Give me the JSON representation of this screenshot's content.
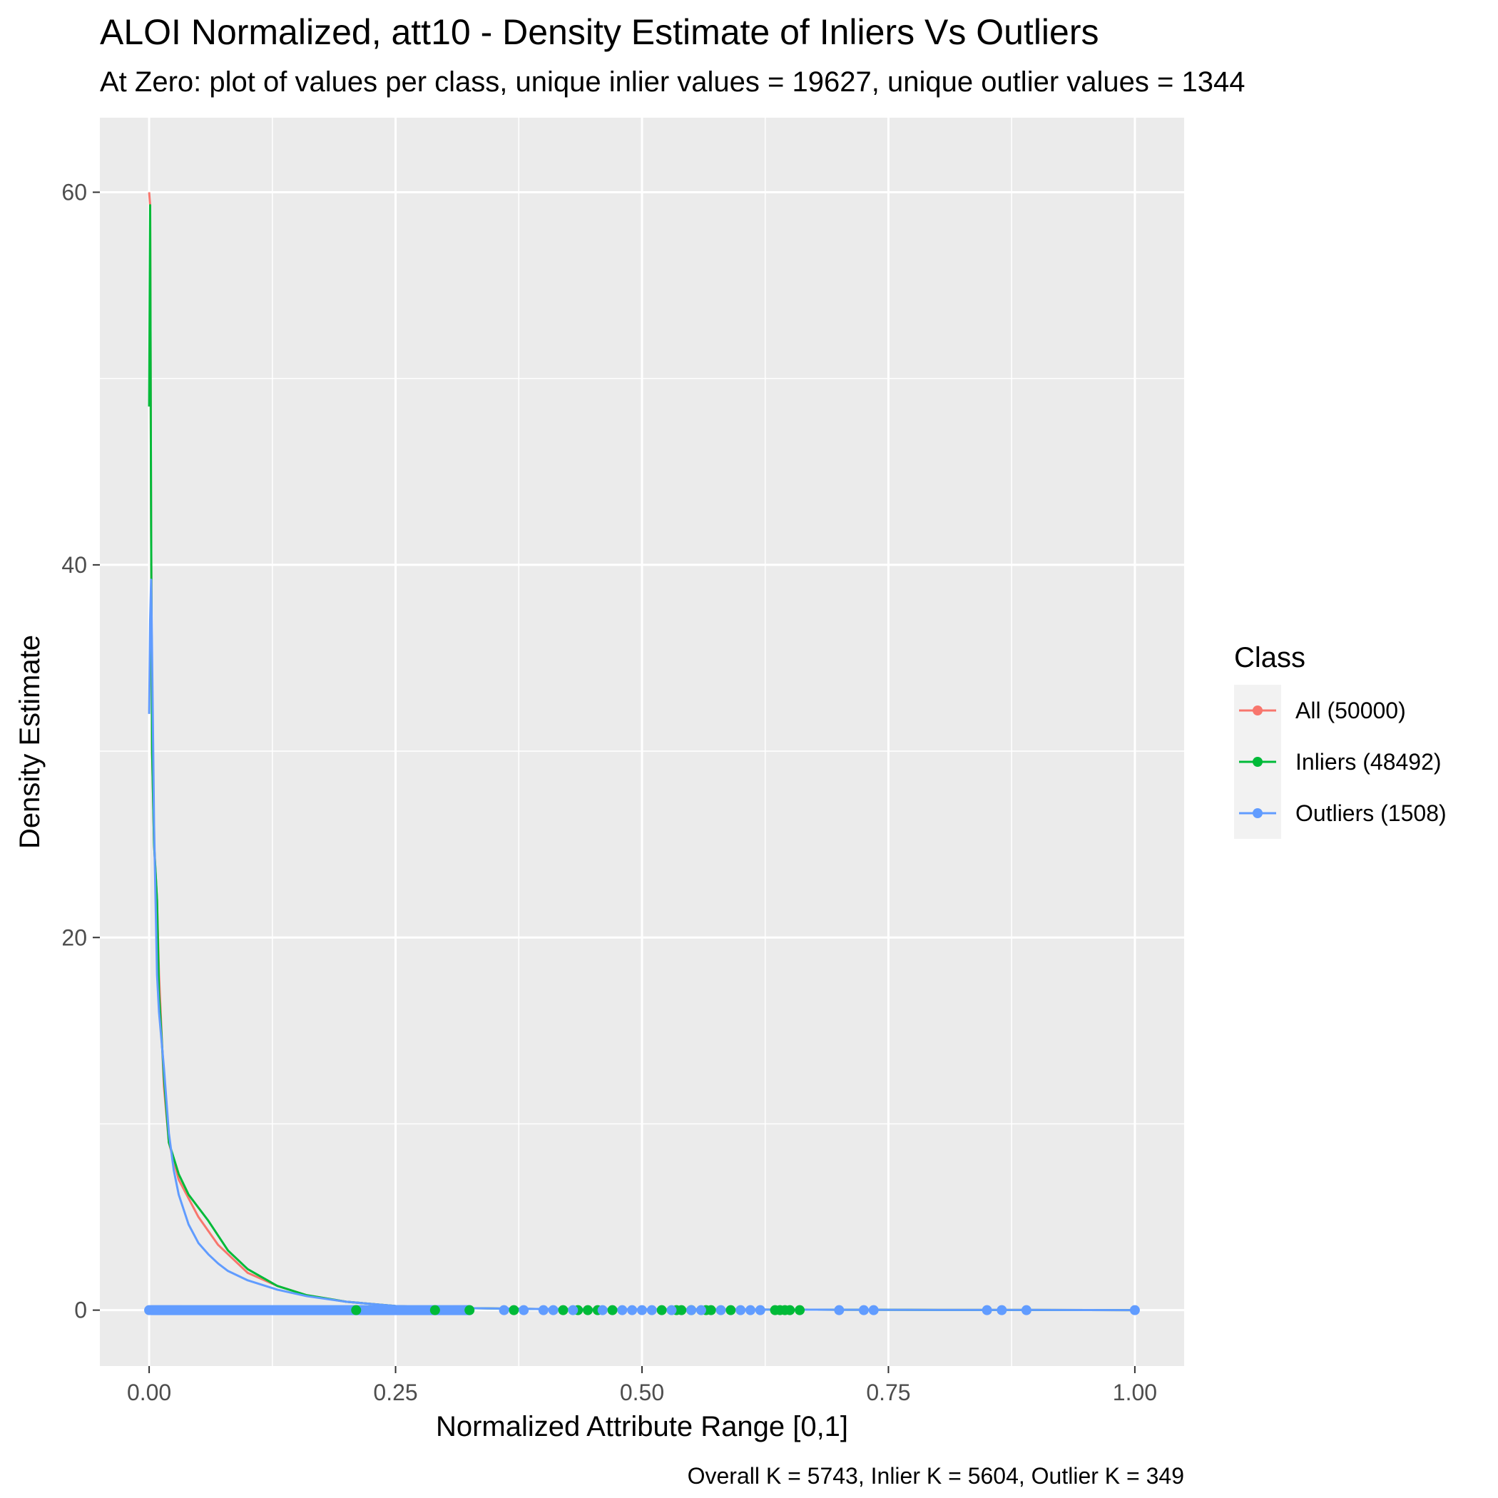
{
  "chart_data": {
    "type": "line",
    "title": "ALOI Normalized, att10 - Density Estimate of Inliers Vs Outliers",
    "subtitle": "At Zero: plot of values per class, unique inlier values = 19627, unique outlier values = 1344",
    "xlabel": "Normalized Attribute Range [0,1]",
    "ylabel": "Density Estimate",
    "caption": "Overall K = 5743, Inlier K = 5604, Outlier K = 349",
    "xlim": [
      -0.05,
      1.05
    ],
    "ylim": [
      -3,
      64
    ],
    "x_ticks": [
      0,
      0.25,
      0.5,
      0.75,
      1.0
    ],
    "x_tick_labels": [
      "0.00",
      "0.25",
      "0.50",
      "0.75",
      "1.00"
    ],
    "y_ticks": [
      0,
      20,
      40,
      60
    ],
    "y_tick_labels": [
      "0",
      "20",
      "40",
      "60"
    ],
    "grid": true,
    "legend": {
      "title": "Class",
      "position": "right"
    },
    "colors": {
      "panel_background": "#ebebeb",
      "grid": "#ffffff",
      "all": "#f8766d",
      "inliers": "#00ba38",
      "outliers": "#619cff"
    },
    "series": [
      {
        "name": "All (50000)",
        "color": "#f8766d",
        "x": [
          0,
          0.001,
          0.002,
          0.003,
          0.005,
          0.008,
          0.01,
          0.015,
          0.02,
          0.03,
          0.05,
          0.07,
          0.1,
          0.13,
          0.16,
          0.2,
          0.25,
          0.3,
          0.4,
          0.5,
          0.6,
          0.7,
          0.8,
          0.9,
          1.0
        ],
        "values": [
          60,
          59.3,
          42,
          30,
          25,
          22,
          18,
          12,
          9,
          7,
          5,
          3.5,
          2,
          1.3,
          0.8,
          0.45,
          0.22,
          0.12,
          0.06,
          0.04,
          0.03,
          0.02,
          0.01,
          0.01,
          0
        ]
      },
      {
        "name": "Inliers (48492)",
        "color": "#00ba38",
        "x": [
          0,
          0.001,
          0.002,
          0.003,
          0.005,
          0.008,
          0.01,
          0.015,
          0.02,
          0.03,
          0.04,
          0.05,
          0.06,
          0.07,
          0.08,
          0.1,
          0.13,
          0.16,
          0.2,
          0.25,
          0.3,
          0.4,
          0.5,
          0.6,
          0.7,
          0.8,
          0.9,
          1.0
        ],
        "values": [
          48.5,
          59.3,
          42,
          30,
          25,
          22,
          17,
          12.5,
          9,
          7.3,
          6.2,
          5.5,
          4.8,
          4,
          3.2,
          2.2,
          1.3,
          0.8,
          0.45,
          0.22,
          0.12,
          0.06,
          0.04,
          0.03,
          0.02,
          0.01,
          0.01,
          0
        ]
      },
      {
        "name": "Outliers (1508)",
        "color": "#619cff",
        "x": [
          0,
          0.001,
          0.002,
          0.003,
          0.005,
          0.008,
          0.01,
          0.015,
          0.02,
          0.025,
          0.03,
          0.04,
          0.05,
          0.06,
          0.07,
          0.08,
          0.1,
          0.13,
          0.16,
          0.2,
          0.25,
          0.3,
          0.4,
          0.5,
          0.6,
          0.7,
          0.8,
          0.9,
          1.0
        ],
        "values": [
          32,
          37,
          39.2,
          35,
          26,
          18,
          16,
          13,
          9.5,
          7.5,
          6.2,
          4.6,
          3.6,
          3.0,
          2.5,
          2.1,
          1.6,
          1.1,
          0.75,
          0.45,
          0.22,
          0.12,
          0.06,
          0.04,
          0.03,
          0.02,
          0.01,
          0.01,
          0
        ]
      }
    ],
    "zero_points": [
      {
        "class": "Inliers (48492)",
        "color": "#00ba38",
        "x": [
          0.21,
          0.29,
          0.325,
          0.37,
          0.42,
          0.435,
          0.445,
          0.455,
          0.47,
          0.52,
          0.535,
          0.54,
          0.55,
          0.565,
          0.57,
          0.59,
          0.635,
          0.64,
          0.645,
          0.65,
          0.66
        ]
      },
      {
        "class": "Outliers (1508)",
        "color": "#619cff",
        "x": [
          0.36,
          0.38,
          0.4,
          0.41,
          0.43,
          0.46,
          0.48,
          0.49,
          0.5,
          0.51,
          0.53,
          0.55,
          0.56,
          0.58,
          0.6,
          0.61,
          0.62,
          0.7,
          0.725,
          0.735,
          0.85,
          0.865,
          0.89,
          1.0
        ]
      }
    ]
  }
}
